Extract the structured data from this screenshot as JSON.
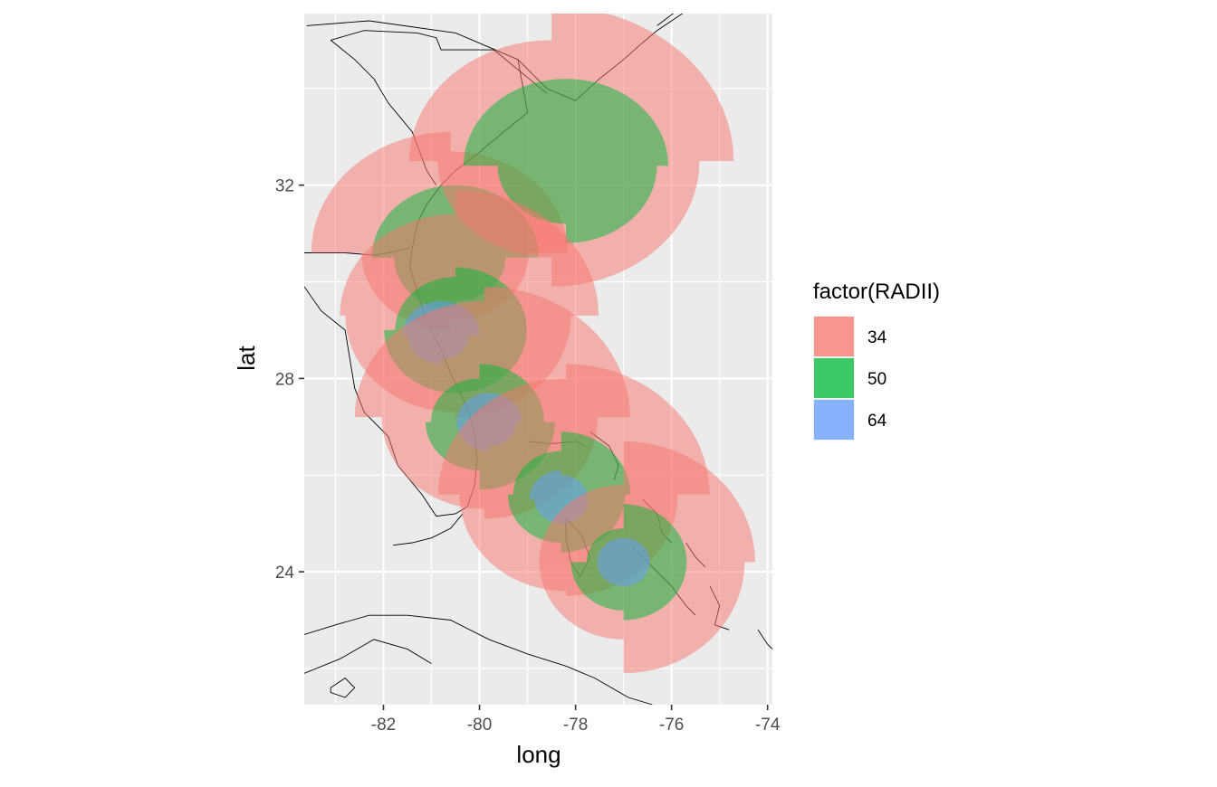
{
  "chart_data": {
    "type": "map",
    "xlabel": "long",
    "ylabel": "lat",
    "xlim": [
      -83.65,
      -73.9
    ],
    "ylim": [
      21.25,
      35.55
    ],
    "x_ticks": [
      -82,
      -80,
      -78,
      -76,
      -74
    ],
    "y_ticks": [
      24,
      28,
      32
    ],
    "x_tick_labels": [
      "-82",
      "-80",
      "-78",
      "-76",
      "-74"
    ],
    "y_tick_labels": [
      "24",
      "28",
      "32"
    ],
    "grid": true,
    "background": "#EBEBEB",
    "legend": {
      "title": "factor(RADII)",
      "position": "right",
      "entries": [
        {
          "label": "34",
          "color": "#F8766D"
        },
        {
          "label": "50",
          "color": "#00BA38"
        },
        {
          "label": "64",
          "color": "#619CFF"
        }
      ]
    },
    "wind_fields": [
      {
        "lon": -80.6,
        "lat": 30.6,
        "radii": "34",
        "ne": 2.1,
        "se": 1.4,
        "sw": 1.6,
        "nw": 2.5
      },
      {
        "lon": -80.5,
        "lat": 30.5,
        "radii": "50",
        "ne": 1.5,
        "se": 0.9,
        "sw": 1.1,
        "nw": 1.5
      },
      {
        "lon": -78.5,
        "lat": 32.5,
        "radii": "34",
        "ne": 3.2,
        "se": 2.6,
        "sw": 2.0,
        "nw": 2.5
      },
      {
        "lon": -78.2,
        "lat": 32.4,
        "radii": "50",
        "ne": 1.8,
        "se": 1.6,
        "sw": 1.2,
        "nw": 1.8
      },
      {
        "lon": -80.5,
        "lat": 29.3,
        "radii": "34",
        "ne": 2.6,
        "se": 2.1,
        "sw": 2.0,
        "nw": 2.1
      },
      {
        "lon": -80.5,
        "lat": 29.0,
        "radii": "50",
        "ne": 1.3,
        "se": 1.3,
        "sw": 1.3,
        "nw": 1.1
      },
      {
        "lon": -80.8,
        "lat": 28.9,
        "radii": "64",
        "ne": 0.7,
        "se": 0.5,
        "sw": 0.6,
        "nw": 0.7
      },
      {
        "lon": -79.9,
        "lat": 27.2,
        "radii": "34",
        "ne": 2.7,
        "se": 2.1,
        "sw": 1.9,
        "nw": 2.4
      },
      {
        "lon": -80.0,
        "lat": 27.1,
        "radii": "50",
        "ne": 1.2,
        "se": 1.4,
        "sw": 1.0,
        "nw": 0.9
      },
      {
        "lon": -79.8,
        "lat": 27.1,
        "radii": "64",
        "ne": 0.6,
        "se": 0.5,
        "sw": 0.6,
        "nw": 0.6
      },
      {
        "lon": -78.2,
        "lat": 25.6,
        "radii": "34",
        "ne": 2.7,
        "se": 2.1,
        "sw": 2.0,
        "nw": 2.4
      },
      {
        "lon": -78.3,
        "lat": 25.6,
        "radii": "50",
        "ne": 1.3,
        "se": 1.2,
        "sw": 1.0,
        "nw": 0.9
      },
      {
        "lon": -78.3,
        "lat": 25.5,
        "radii": "64",
        "ne": 0.5,
        "se": 0.5,
        "sw": 0.5,
        "nw": 0.6
      },
      {
        "lon": -77.0,
        "lat": 24.2,
        "radii": "34",
        "ne": 2.5,
        "se": 2.3,
        "sw": 1.6,
        "nw": 1.6
      },
      {
        "lon": -77.0,
        "lat": 24.2,
        "radii": "50",
        "ne": 1.2,
        "se": 1.2,
        "sw": 1.0,
        "nw": 0.7
      },
      {
        "lon": -77.0,
        "lat": 24.2,
        "radii": "64",
        "ne": 0.5,
        "se": 0.5,
        "sw": 0.5,
        "nw": 0.5
      }
    ],
    "coastlines": [
      {
        "name": "us-east-coast",
        "points": [
          [
            -83.6,
            35.3
          ],
          [
            -82.3,
            35.4
          ],
          [
            -80.5,
            35.15
          ],
          [
            -79.2,
            34.6
          ],
          [
            -78.6,
            34.0
          ],
          [
            -78.0,
            33.75
          ],
          [
            -77.5,
            34.2
          ],
          [
            -77.0,
            34.6
          ],
          [
            -76.6,
            34.95
          ],
          [
            -76.3,
            35.2
          ],
          [
            -75.7,
            35.6
          ]
        ]
      },
      {
        "name": "sc-ga-coast",
        "points": [
          [
            -79.2,
            34.6
          ],
          [
            -79.0,
            33.5
          ],
          [
            -79.5,
            33.1
          ],
          [
            -80.1,
            32.6
          ],
          [
            -80.5,
            32.3
          ],
          [
            -80.8,
            32.0
          ],
          [
            -81.1,
            31.6
          ],
          [
            -81.3,
            31.2
          ],
          [
            -81.4,
            30.7
          ],
          [
            -81.45,
            30.3
          ],
          [
            -81.3,
            29.8
          ],
          [
            -81.1,
            29.2
          ],
          [
            -80.8,
            28.6
          ],
          [
            -80.6,
            28.1
          ],
          [
            -80.3,
            27.5
          ],
          [
            -80.1,
            26.9
          ],
          [
            -80.05,
            26.3
          ],
          [
            -80.1,
            25.8
          ],
          [
            -80.25,
            25.35
          ],
          [
            -80.5,
            25.2
          ],
          [
            -80.9,
            25.15
          ],
          [
            -81.2,
            25.6
          ],
          [
            -81.7,
            26.2
          ],
          [
            -81.9,
            26.8
          ],
          [
            -82.4,
            27.3
          ],
          [
            -82.6,
            27.8
          ],
          [
            -82.7,
            28.4
          ],
          [
            -82.8,
            29.0
          ],
          [
            -83.3,
            29.4
          ],
          [
            -83.65,
            29.9
          ]
        ]
      },
      {
        "name": "ga-fl-border",
        "points": [
          [
            -83.65,
            30.6
          ],
          [
            -82.8,
            30.6
          ],
          [
            -82.2,
            30.55
          ],
          [
            -81.9,
            30.6
          ],
          [
            -81.45,
            30.7
          ]
        ]
      },
      {
        "name": "nc-sc-border",
        "points": [
          [
            -83.1,
            35.0
          ],
          [
            -82.4,
            35.2
          ],
          [
            -81.3,
            35.15
          ],
          [
            -80.9,
            35.05
          ],
          [
            -80.8,
            34.8
          ],
          [
            -79.7,
            34.8
          ],
          [
            -78.6,
            33.9
          ]
        ]
      },
      {
        "name": "sc-ga-border",
        "points": [
          [
            -83.1,
            35.0
          ],
          [
            -82.6,
            34.6
          ],
          [
            -82.2,
            34.2
          ],
          [
            -81.9,
            33.7
          ],
          [
            -81.4,
            33.1
          ],
          [
            -81.1,
            32.3
          ],
          [
            -80.9,
            32.0
          ]
        ]
      },
      {
        "name": "florida-keys",
        "points": [
          [
            -81.8,
            24.55
          ],
          [
            -81.4,
            24.6
          ],
          [
            -81.0,
            24.7
          ],
          [
            -80.6,
            24.9
          ],
          [
            -80.35,
            25.2
          ]
        ]
      },
      {
        "name": "cuba-north",
        "points": [
          [
            -83.65,
            22.7
          ],
          [
            -83.0,
            22.9
          ],
          [
            -82.3,
            23.1
          ],
          [
            -81.5,
            23.1
          ],
          [
            -80.6,
            23.0
          ],
          [
            -79.8,
            22.6
          ],
          [
            -79.0,
            22.3
          ],
          [
            -78.2,
            22.05
          ],
          [
            -77.6,
            21.8
          ],
          [
            -76.9,
            21.4
          ],
          [
            -76.4,
            21.25
          ]
        ]
      },
      {
        "name": "cuba-south",
        "points": [
          [
            -83.65,
            21.9
          ],
          [
            -82.9,
            22.2
          ],
          [
            -82.2,
            22.6
          ],
          [
            -81.5,
            22.4
          ],
          [
            -81.0,
            22.1
          ]
        ]
      },
      {
        "name": "isle-of-youth",
        "points": [
          [
            -83.1,
            21.6
          ],
          [
            -82.8,
            21.8
          ],
          [
            -82.6,
            21.6
          ],
          [
            -82.8,
            21.4
          ],
          [
            -83.1,
            21.5
          ],
          [
            -83.1,
            21.6
          ]
        ]
      },
      {
        "name": "andros",
        "points": [
          [
            -78.2,
            25.1
          ],
          [
            -77.9,
            24.8
          ],
          [
            -77.7,
            24.3
          ],
          [
            -77.9,
            23.9
          ],
          [
            -78.1,
            24.2
          ],
          [
            -78.2,
            24.7
          ],
          [
            -78.2,
            25.1
          ]
        ]
      },
      {
        "name": "grand-bahama",
        "points": [
          [
            -79.0,
            26.7
          ],
          [
            -78.5,
            26.65
          ],
          [
            -78.0,
            26.7
          ],
          [
            -77.8,
            26.6
          ]
        ]
      },
      {
        "name": "abaco",
        "points": [
          [
            -77.7,
            26.9
          ],
          [
            -77.3,
            26.6
          ],
          [
            -77.1,
            26.2
          ],
          [
            -77.2,
            25.9
          ]
        ]
      },
      {
        "name": "eleuthera",
        "points": [
          [
            -76.6,
            25.5
          ],
          [
            -76.3,
            25.2
          ],
          [
            -76.2,
            24.8
          ],
          [
            -76.0,
            24.6
          ]
        ]
      },
      {
        "name": "exuma",
        "points": [
          [
            -76.8,
            24.5
          ],
          [
            -76.5,
            24.2
          ],
          [
            -76.0,
            23.7
          ],
          [
            -75.7,
            23.3
          ],
          [
            -75.5,
            23.1
          ]
        ]
      },
      {
        "name": "long-island",
        "points": [
          [
            -75.2,
            23.7
          ],
          [
            -75.0,
            23.3
          ],
          [
            -75.1,
            22.9
          ],
          [
            -74.8,
            22.8
          ]
        ]
      },
      {
        "name": "cat-island",
        "points": [
          [
            -75.7,
            24.6
          ],
          [
            -75.5,
            24.3
          ],
          [
            -75.3,
            24.1
          ]
        ]
      },
      {
        "name": "acklins",
        "points": [
          [
            -74.2,
            22.8
          ],
          [
            -74.0,
            22.5
          ],
          [
            -73.9,
            22.4
          ]
        ]
      },
      {
        "name": "outer-banks",
        "points": [
          [
            -76.3,
            35.3
          ],
          [
            -75.9,
            35.6
          ]
        ]
      }
    ]
  }
}
